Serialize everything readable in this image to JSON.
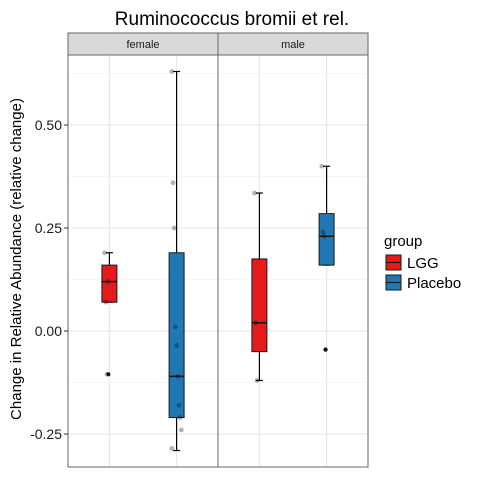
{
  "chart_data": {
    "type": "boxplot",
    "title": "Ruminococcus bromii et rel.",
    "ylabel": "Change in Relative Abundance (relative change)",
    "xlabel": "",
    "ylim": [
      -0.33,
      0.67
    ],
    "yticks": [
      -0.25,
      0.0,
      0.25,
      0.5
    ],
    "ytick_labels": [
      "-0.25",
      "0.00",
      "0.25",
      "0.50"
    ],
    "grid": true,
    "legend": {
      "title": "group",
      "position": "right",
      "entries": [
        "LGG",
        "Placebo"
      ]
    },
    "colors": {
      "LGG": "#e41a1c",
      "Placebo": "#1f78b4",
      "strip": "#d9d9d9"
    },
    "facets": [
      {
        "label": "female",
        "boxes": [
          {
            "group": "LGG",
            "min": 0.07,
            "q1": 0.07,
            "median": 0.12,
            "q3": 0.16,
            "max": 0.19,
            "outliers": [
              -0.105
            ],
            "points": [
              0.19,
              0.07,
              -0.105,
              0.12
            ]
          },
          {
            "group": "Placebo",
            "min": -0.29,
            "q1": -0.21,
            "median": -0.11,
            "q3": 0.19,
            "max": 0.63,
            "outliers": [],
            "points": [
              0.63,
              0.36,
              0.25,
              0.01,
              -0.035,
              -0.11,
              -0.18,
              -0.21,
              -0.24,
              -0.285
            ]
          }
        ]
      },
      {
        "label": "male",
        "boxes": [
          {
            "group": "LGG",
            "min": -0.12,
            "q1": -0.05,
            "median": 0.02,
            "q3": 0.175,
            "max": 0.335,
            "outliers": [],
            "points": [
              0.335,
              0.02,
              -0.12
            ]
          },
          {
            "group": "Placebo",
            "min": 0.16,
            "q1": 0.16,
            "median": 0.23,
            "q3": 0.285,
            "max": 0.4,
            "outliers": [
              -0.045
            ],
            "points": [
              0.4,
              0.24,
              0.23,
              -0.045
            ]
          }
        ]
      }
    ]
  }
}
